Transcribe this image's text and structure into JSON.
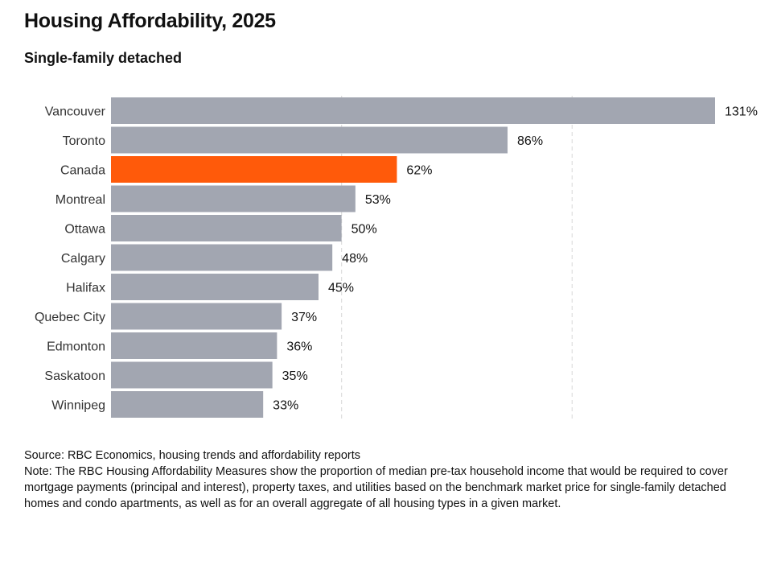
{
  "header": {
    "title": "Housing Affordability, 2025",
    "subtitle": "Single-family detached"
  },
  "footer": {
    "source": "Source: RBC Economics, housing trends and affordability reports",
    "note": "Note: The RBC Housing Affordability Measures show the proportion of median pre-tax household income that would be required to cover mortgage payments (principal and interest), property taxes, and utilities based on the benchmark market price for single-family detached homes and condo apartments, as well as for an overall aggregate of all housing types in a given market."
  },
  "chart_data": {
    "type": "bar",
    "orientation": "horizontal",
    "title": "Housing Affordability, 2025",
    "subtitle": "Single-family detached",
    "categories": [
      "Vancouver",
      "Toronto",
      "Canada",
      "Montreal",
      "Ottawa",
      "Calgary",
      "Halifax",
      "Quebec City",
      "Edmonton",
      "Saskatoon",
      "Winnipeg"
    ],
    "values": [
      131,
      86,
      62,
      53,
      50,
      48,
      45,
      37,
      36,
      35,
      33
    ],
    "value_labels": [
      "131%",
      "86%",
      "62%",
      "53%",
      "50%",
      "48%",
      "45%",
      "37%",
      "36%",
      "35%",
      "33%"
    ],
    "highlight": "Canada",
    "colors": {
      "bar": "#a2a6b1",
      "highlight": "#ff5a0a",
      "grid": "#dddddd"
    },
    "xlim": [
      0,
      131
    ],
    "gridlines_at": [
      50,
      100
    ],
    "grid": true,
    "xlabel": "",
    "ylabel": ""
  }
}
